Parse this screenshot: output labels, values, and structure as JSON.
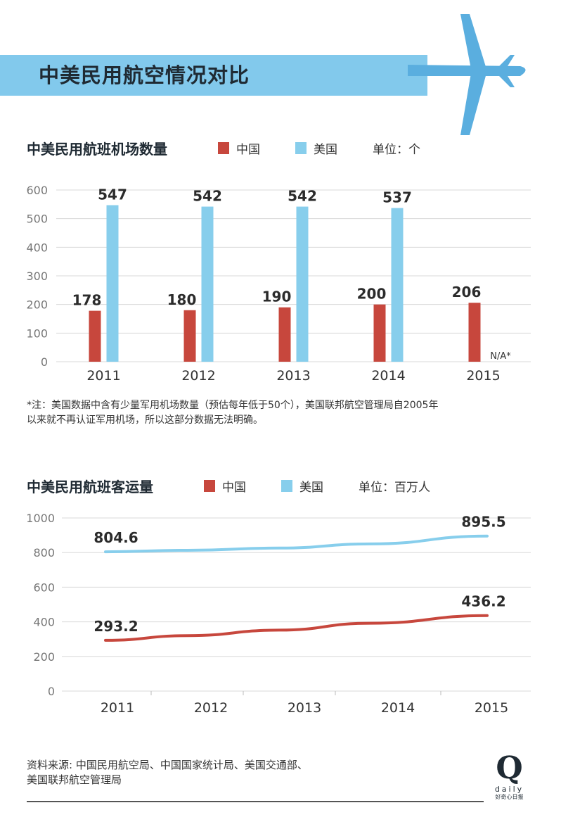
{
  "header": {
    "title": "中美民用航空情况对比"
  },
  "legend": {
    "china": "中国",
    "usa": "美国"
  },
  "colors": {
    "china": "#c7473d",
    "usa": "#87ceec",
    "banner": "#82c9ec",
    "plane": "#5aaedf"
  },
  "chart_data": [
    {
      "type": "bar",
      "title": "中美民用航班机场数量",
      "unit_label": "单位：个",
      "categories": [
        "2011",
        "2012",
        "2013",
        "2014",
        "2015"
      ],
      "series": [
        {
          "name": "中国",
          "values": [
            178,
            180,
            190,
            200,
            206
          ],
          "labels": [
            "178",
            "180",
            "190",
            "200",
            "206"
          ]
        },
        {
          "name": "美国",
          "values": [
            547,
            542,
            542,
            537,
            null
          ],
          "labels": [
            "547",
            "542",
            "542",
            "537",
            "N/A*"
          ]
        }
      ],
      "yticks": [
        "600",
        "500",
        "400",
        "300",
        "200",
        "100",
        "0"
      ],
      "ylim": [
        0,
        600
      ],
      "grid": true
    },
    {
      "type": "line",
      "title": "中美民用航班客运量",
      "unit_label": "单位：百万人",
      "categories": [
        "2011",
        "2012",
        "2013",
        "2014",
        "2015"
      ],
      "series": [
        {
          "name": "美国",
          "values": [
            804.6,
            813,
            826,
            850,
            895.5
          ]
        },
        {
          "name": "中国",
          "values": [
            293.2,
            320,
            352,
            392,
            436.2
          ]
        }
      ],
      "point_labels": [
        {
          "series": "美国",
          "index": 0,
          "text": "804.6"
        },
        {
          "series": "美国",
          "index": 4,
          "text": "895.5"
        },
        {
          "series": "中国",
          "index": 0,
          "text": "293.2"
        },
        {
          "series": "中国",
          "index": 4,
          "text": "436.2"
        }
      ],
      "yticks": [
        "1000",
        "800",
        "600",
        "400",
        "200",
        "0"
      ],
      "ylim": [
        0,
        1000
      ],
      "grid": true
    }
  ],
  "note": {
    "line1": "*注：美国数据中含有少量军用机场数量（预估每年低于50个），美国联邦航空管理局自2005年",
    "line2": "以来就不再认证军用机场，所以这部分数据无法明确。"
  },
  "source": {
    "line1": "资料来源: 中国民用航空局、中国国家统计局、美国交通部、",
    "line2": "美国联邦航空管理局"
  },
  "logo": {
    "letter": "Q",
    "word": "daily",
    "sub": "好奇心日报"
  }
}
